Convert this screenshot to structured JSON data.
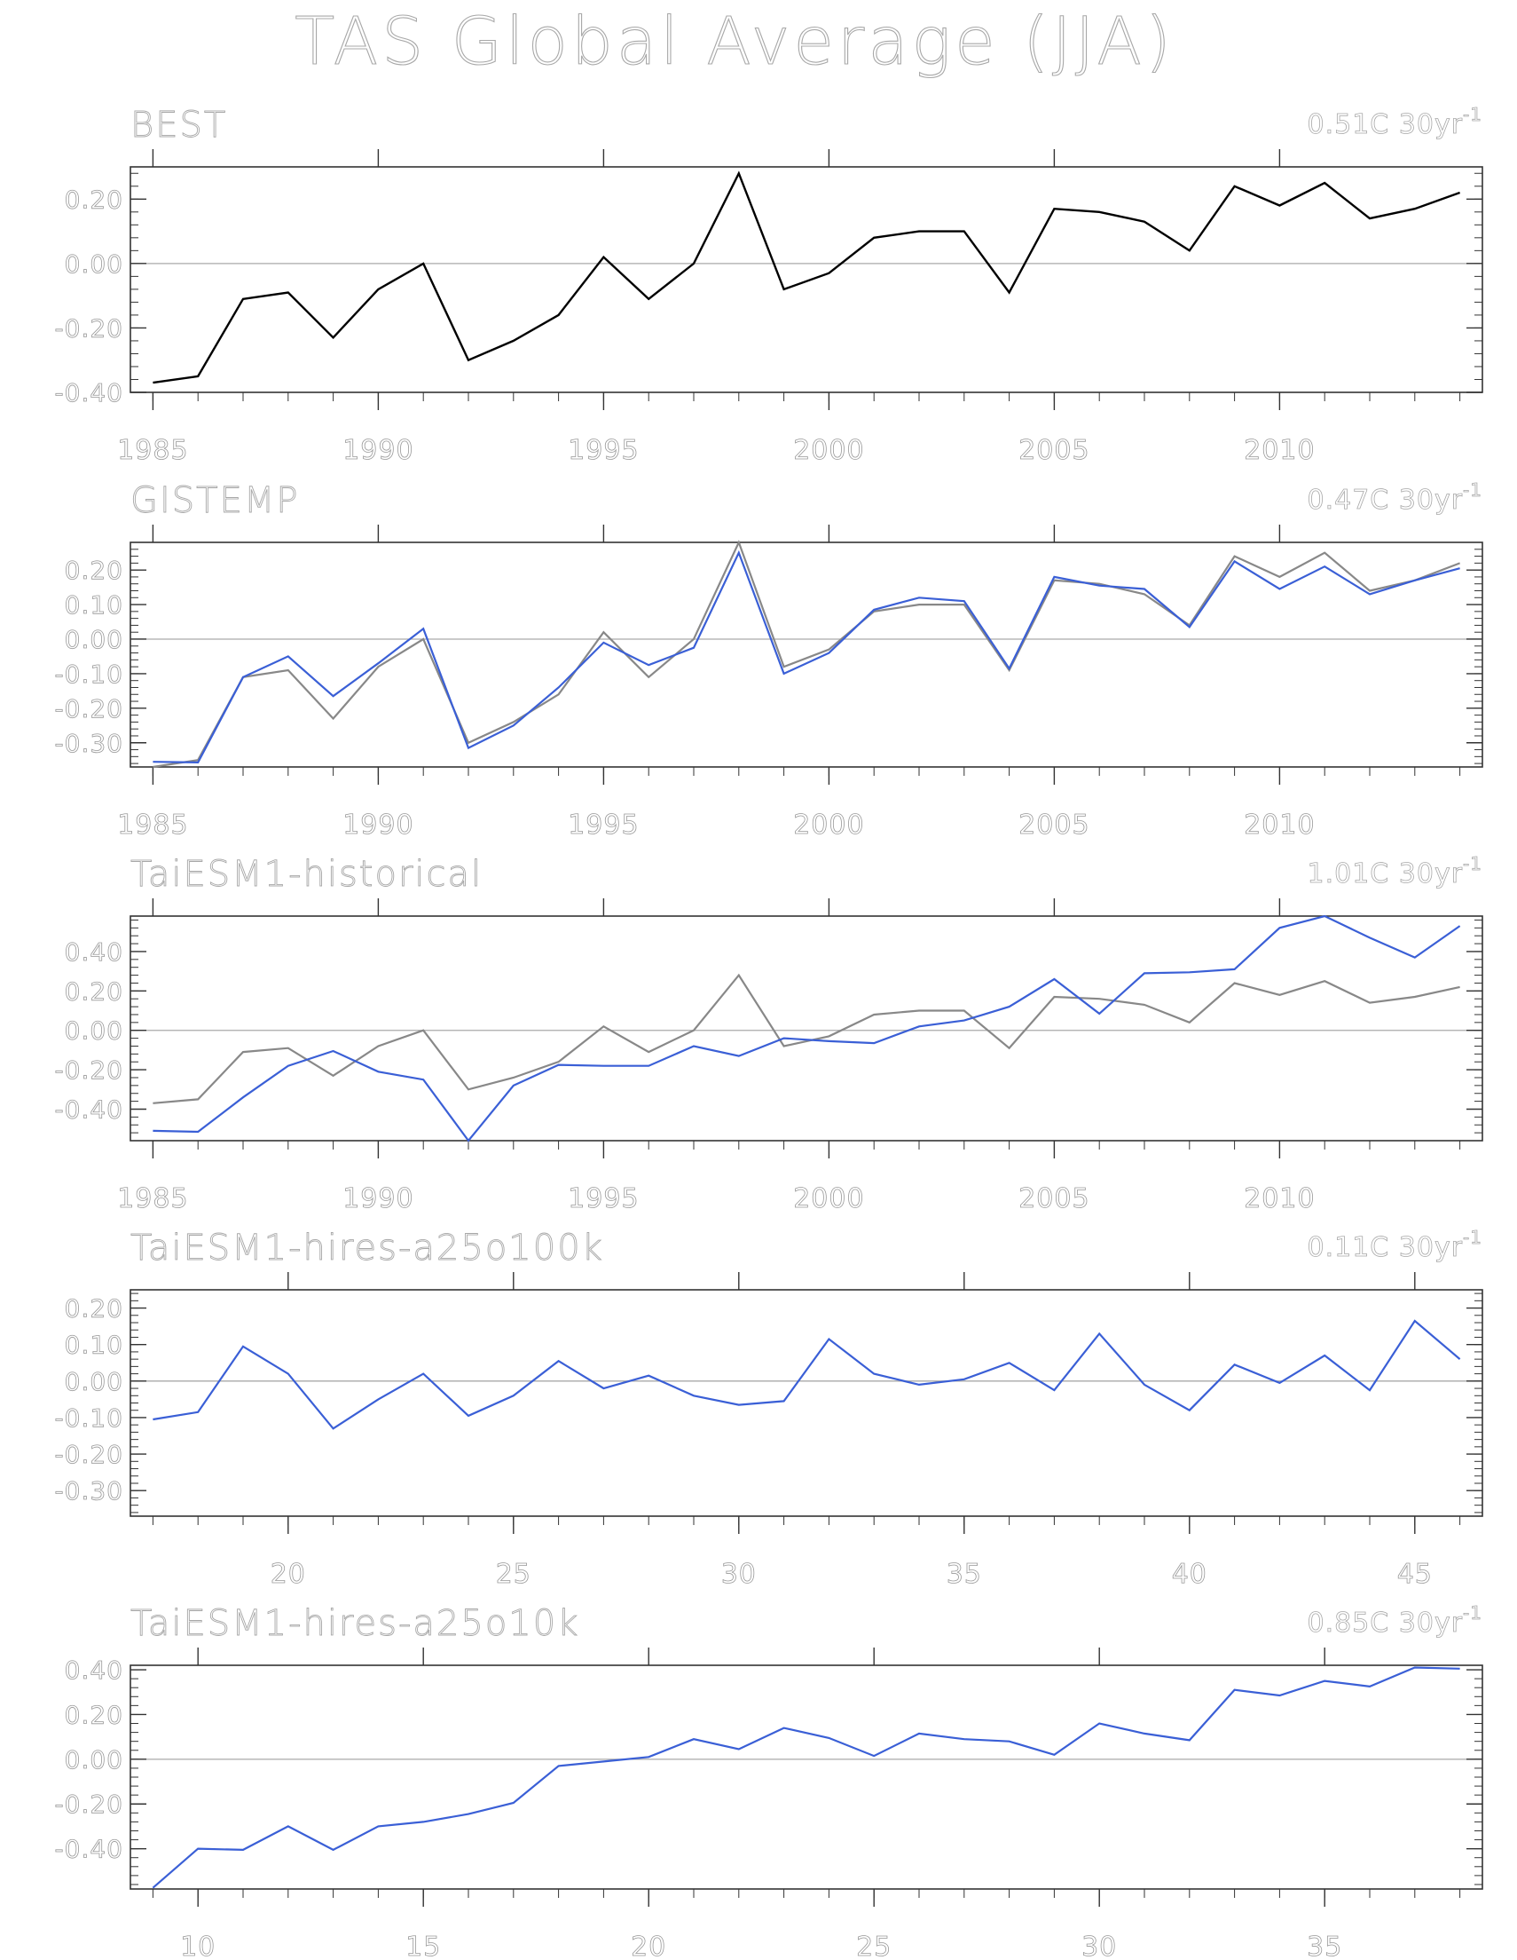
{
  "title": "TAS Global Average (JJA)",
  "colors": {
    "obs": "#000000",
    "ref": "#888888",
    "model": "#3a5fd6",
    "axis": "#333333",
    "text": "#999999",
    "zero": "#aaaaaa"
  },
  "chart_data": [
    {
      "type": "line",
      "title": "BEST",
      "trend_label": "0.51C 30yr",
      "trend_exp": "-1",
      "xlim": [
        1984.5,
        2014.5
      ],
      "xticks": [
        1985,
        1990,
        1995,
        2000,
        2005,
        2010
      ],
      "ylim": [
        -0.4,
        0.3
      ],
      "yticks": [
        0.2,
        0.0,
        -0.2,
        -0.4
      ],
      "ytick_labels": [
        "0.20",
        "0.00",
        "-0.20",
        "-0.40"
      ],
      "series": [
        {
          "role": "obs",
          "x": [
            1985,
            1986,
            1987,
            1988,
            1989,
            1990,
            1991,
            1992,
            1993,
            1994,
            1995,
            1996,
            1997,
            1998,
            1999,
            2000,
            2001,
            2002,
            2003,
            2004,
            2005,
            2006,
            2007,
            2008,
            2009,
            2010,
            2011,
            2012,
            2013,
            2014
          ],
          "values": [
            -0.37,
            -0.35,
            -0.11,
            -0.09,
            -0.23,
            -0.08,
            0.0,
            -0.3,
            -0.24,
            -0.16,
            0.02,
            -0.11,
            0.0,
            0.28,
            -0.08,
            -0.03,
            0.08,
            0.1,
            0.1,
            -0.09,
            0.17,
            0.16,
            0.13,
            0.04,
            0.24,
            0.18,
            0.25,
            0.14,
            0.17,
            0.22
          ]
        }
      ]
    },
    {
      "type": "line",
      "title": "GISTEMP",
      "trend_label": "0.47C 30yr",
      "trend_exp": "-1",
      "xlim": [
        1984.5,
        2014.5
      ],
      "xticks": [
        1985,
        1990,
        1995,
        2000,
        2005,
        2010
      ],
      "ylim": [
        -0.37,
        0.28
      ],
      "yticks": [
        0.2,
        0.1,
        0.0,
        -0.1,
        -0.2,
        -0.3
      ],
      "ytick_labels": [
        "0.20",
        "0.10",
        "0.00",
        "-0.10",
        "-0.20",
        "-0.30"
      ],
      "series": [
        {
          "role": "ref",
          "x": [
            1985,
            1986,
            1987,
            1988,
            1989,
            1990,
            1991,
            1992,
            1993,
            1994,
            1995,
            1996,
            1997,
            1998,
            1999,
            2000,
            2001,
            2002,
            2003,
            2004,
            2005,
            2006,
            2007,
            2008,
            2009,
            2010,
            2011,
            2012,
            2013,
            2014
          ],
          "values": [
            -0.37,
            -0.35,
            -0.11,
            -0.09,
            -0.23,
            -0.08,
            0.0,
            -0.3,
            -0.24,
            -0.16,
            0.02,
            -0.11,
            0.0,
            0.28,
            -0.08,
            -0.03,
            0.08,
            0.1,
            0.1,
            -0.09,
            0.17,
            0.16,
            0.13,
            0.04,
            0.24,
            0.18,
            0.25,
            0.14,
            0.17,
            0.22
          ]
        },
        {
          "role": "model",
          "x": [
            1985,
            1986,
            1987,
            1988,
            1989,
            1990,
            1991,
            1992,
            1993,
            1994,
            1995,
            1996,
            1997,
            1998,
            1999,
            2000,
            2001,
            2002,
            2003,
            2004,
            2005,
            2006,
            2007,
            2008,
            2009,
            2010,
            2011,
            2012,
            2013,
            2014
          ],
          "values": [
            -0.355,
            -0.357,
            -0.11,
            -0.05,
            -0.165,
            -0.07,
            0.03,
            -0.315,
            -0.25,
            -0.14,
            -0.01,
            -0.075,
            -0.025,
            0.25,
            -0.1,
            -0.04,
            0.085,
            0.12,
            0.11,
            -0.085,
            0.18,
            0.155,
            0.145,
            0.035,
            0.225,
            0.145,
            0.21,
            0.13,
            0.17,
            0.205
          ]
        }
      ]
    },
    {
      "type": "line",
      "title": "TaiESM1-historical",
      "trend_label": "1.01C 30yr",
      "trend_exp": "-1",
      "xlim": [
        1984.5,
        2014.5
      ],
      "xticks": [
        1985,
        1990,
        1995,
        2000,
        2005,
        2010
      ],
      "ylim": [
        -0.56,
        0.58
      ],
      "yticks": [
        0.4,
        0.2,
        0.0,
        -0.2,
        -0.4
      ],
      "ytick_labels": [
        "0.40",
        "0.20",
        "0.00",
        "-0.20",
        "-0.40"
      ],
      "series": [
        {
          "role": "ref",
          "x": [
            1985,
            1986,
            1987,
            1988,
            1989,
            1990,
            1991,
            1992,
            1993,
            1994,
            1995,
            1996,
            1997,
            1998,
            1999,
            2000,
            2001,
            2002,
            2003,
            2004,
            2005,
            2006,
            2007,
            2008,
            2009,
            2010,
            2011,
            2012,
            2013,
            2014
          ],
          "values": [
            -0.37,
            -0.35,
            -0.11,
            -0.09,
            -0.23,
            -0.08,
            0.0,
            -0.3,
            -0.24,
            -0.16,
            0.02,
            -0.11,
            0.0,
            0.28,
            -0.08,
            -0.03,
            0.08,
            0.1,
            0.1,
            -0.09,
            0.17,
            0.16,
            0.13,
            0.04,
            0.24,
            0.18,
            0.25,
            0.14,
            0.17,
            0.22
          ]
        },
        {
          "role": "model",
          "x": [
            1985,
            1986,
            1987,
            1988,
            1989,
            1990,
            1991,
            1992,
            1993,
            1994,
            1995,
            1996,
            1997,
            1998,
            1999,
            2000,
            2001,
            2002,
            2003,
            2004,
            2005,
            2006,
            2007,
            2008,
            2009,
            2010,
            2011,
            2012,
            2013,
            2014
          ],
          "values": [
            -0.51,
            -0.515,
            -0.34,
            -0.18,
            -0.105,
            -0.21,
            -0.25,
            -0.56,
            -0.28,
            -0.175,
            -0.18,
            -0.18,
            -0.08,
            -0.13,
            -0.04,
            -0.055,
            -0.065,
            0.02,
            0.05,
            0.12,
            0.26,
            0.085,
            0.29,
            0.295,
            0.31,
            0.52,
            0.58,
            0.47,
            0.37,
            0.53
          ]
        }
      ]
    },
    {
      "type": "line",
      "title": "TaiESM1-hires-a25o100k",
      "trend_label": "0.11C 30yr",
      "trend_exp": "-1",
      "xlim": [
        16.5,
        46.5
      ],
      "xticks": [
        20,
        25,
        30,
        35,
        40,
        45
      ],
      "ylim": [
        -0.37,
        0.25
      ],
      "yticks": [
        0.2,
        0.1,
        0.0,
        -0.1,
        -0.2,
        -0.3
      ],
      "ytick_labels": [
        "0.20",
        "0.10",
        "0.00",
        "-0.10",
        "-0.20",
        "-0.30"
      ],
      "series": [
        {
          "role": "model",
          "x": [
            17,
            18,
            19,
            20,
            21,
            22,
            23,
            24,
            25,
            26,
            27,
            28,
            29,
            30,
            31,
            32,
            33,
            34,
            35,
            36,
            37,
            38,
            39,
            40,
            41,
            42,
            43,
            44,
            45,
            46
          ],
          "values": [
            -0.105,
            -0.085,
            0.095,
            0.02,
            -0.13,
            -0.05,
            0.02,
            -0.095,
            -0.04,
            0.055,
            -0.02,
            0.015,
            -0.04,
            -0.065,
            -0.055,
            0.115,
            0.02,
            -0.01,
            0.005,
            0.05,
            -0.025,
            0.13,
            -0.01,
            -0.08,
            0.045,
            -0.005,
            0.07,
            -0.025,
            0.165,
            0.06
          ]
        }
      ]
    },
    {
      "type": "line",
      "title": "TaiESM1-hires-a25o10k",
      "trend_label": "0.85C 30yr",
      "trend_exp": "-1",
      "xlim": [
        8.5,
        38.5
      ],
      "xticks": [
        10,
        15,
        20,
        25,
        30,
        35
      ],
      "ylim": [
        -0.58,
        0.42
      ],
      "yticks": [
        0.4,
        0.2,
        0.0,
        -0.2,
        -0.4
      ],
      "ytick_labels": [
        "0.40",
        "0.20",
        "0.00",
        "-0.20",
        "-0.40"
      ],
      "series": [
        {
          "role": "model",
          "x": [
            9,
            10,
            11,
            12,
            13,
            14,
            15,
            16,
            17,
            18,
            19,
            20,
            21,
            22,
            23,
            24,
            25,
            26,
            27,
            28,
            29,
            30,
            31,
            32,
            33,
            34,
            35,
            36,
            37,
            38
          ],
          "values": [
            -0.575,
            -0.4,
            -0.405,
            -0.3,
            -0.405,
            -0.3,
            -0.28,
            -0.245,
            -0.195,
            -0.03,
            -0.01,
            0.01,
            0.09,
            0.045,
            0.14,
            0.095,
            0.015,
            0.115,
            0.09,
            0.08,
            0.02,
            0.16,
            0.115,
            0.085,
            0.31,
            0.285,
            0.35,
            0.325,
            0.41,
            0.405
          ]
        }
      ]
    }
  ]
}
